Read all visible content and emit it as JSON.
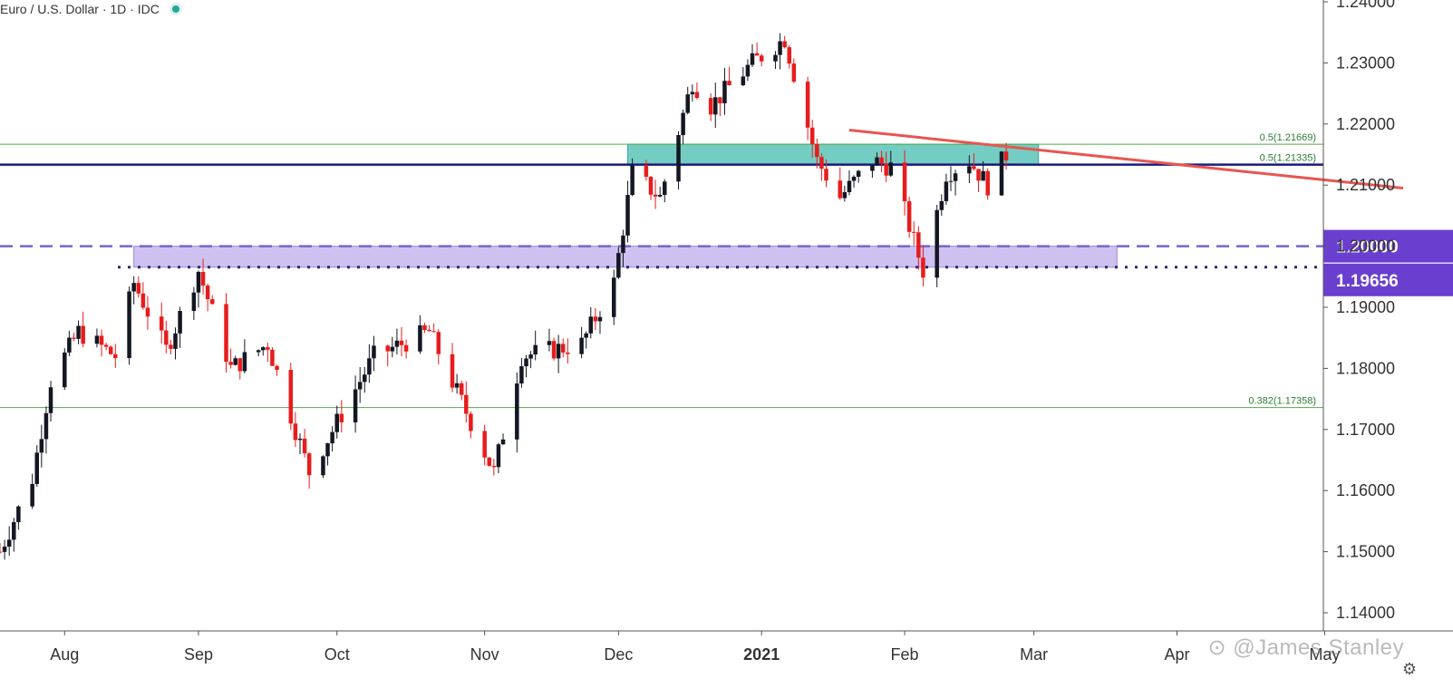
{
  "header": {
    "title": "Euro / U.S. Dollar · 1D · IDC"
  },
  "watermark": "⊙ @James Stanley",
  "icons": {
    "settings": "gear-icon"
  },
  "colors": {
    "up": "#131722",
    "down": "#e81c1c",
    "fib_line": "#55a84a",
    "fib_text": "#2e7d32",
    "level_line": "#1a1a80",
    "zone_teal": "#5cc4b8",
    "zone_purple": "#b9a6e8",
    "dash_purple": "#7b63c9",
    "trendline": "#e85650",
    "axis_badge": "#6a3fcf"
  },
  "chart_data": {
    "type": "candlestick",
    "symbol": "Euro / U.S. Dollar",
    "timeframe": "1D",
    "source": "IDC",
    "ylim": [
      1.135,
      1.24
    ],
    "y_ticks": [
      "1.24000",
      "1.23000",
      "1.22000",
      "1.21000",
      "1.20000",
      "1.19000",
      "1.18000",
      "1.17000",
      "1.16000",
      "1.15000",
      "1.14000"
    ],
    "x_ticks": [
      {
        "label": "Aug",
        "date": "2020-08-03"
      },
      {
        "label": "Sep",
        "date": "2020-09-01"
      },
      {
        "label": "Oct",
        "date": "2020-10-01"
      },
      {
        "label": "Nov",
        "date": "2020-11-02"
      },
      {
        "label": "Dec",
        "date": "2020-12-01"
      },
      {
        "label": "2021",
        "date": "2021-01-01"
      },
      {
        "label": "Feb",
        "date": "2021-02-01"
      },
      {
        "label": "Mar",
        "date": "2021-03-01"
      },
      {
        "label": "Apr",
        "date": "2021-04-01"
      },
      {
        "label": "May",
        "date": "2021-05-03"
      }
    ],
    "candles_anchor": [
      [
        "2020-07-20",
        1.15
      ],
      [
        "2020-07-27",
        1.162
      ],
      [
        "2020-07-31",
        1.178
      ],
      [
        "2020-08-06",
        1.186
      ],
      [
        "2020-08-14",
        1.182
      ],
      [
        "2020-08-18",
        1.194
      ],
      [
        "2020-08-25",
        1.183
      ],
      [
        "2020-09-01",
        1.196
      ],
      [
        "2020-09-08",
        1.18
      ],
      [
        "2020-09-16",
        1.184
      ],
      [
        "2020-09-25",
        1.163
      ],
      [
        "2020-10-09",
        1.182
      ],
      [
        "2020-10-21",
        1.186
      ],
      [
        "2020-11-04",
        1.163
      ],
      [
        "2020-11-10",
        1.182
      ],
      [
        "2020-11-23",
        1.184
      ],
      [
        "2020-11-30",
        1.194
      ],
      [
        "2020-12-04",
        1.212
      ],
      [
        "2020-12-10",
        1.208
      ],
      [
        "2020-12-17",
        1.227
      ],
      [
        "2020-12-21",
        1.223
      ],
      [
        "2020-12-30",
        1.23
      ],
      [
        "2021-01-06",
        1.234
      ],
      [
        "2021-01-13",
        1.214
      ],
      [
        "2021-01-18",
        1.208
      ],
      [
        "2021-01-25",
        1.214
      ],
      [
        "2021-01-29",
        1.213
      ],
      [
        "2021-02-05",
        1.196
      ],
      [
        "2021-02-10",
        1.212
      ],
      [
        "2021-02-15",
        1.214
      ],
      [
        "2021-02-19",
        1.21
      ],
      [
        "2021-02-23",
        1.215
      ]
    ],
    "annotations": [
      {
        "type": "hline",
        "value": 1.21669,
        "label": "0.5(1.21669)",
        "style": "fib"
      },
      {
        "type": "hline",
        "value": 1.21335,
        "label": "0.5(1.21335)",
        "style": "solid-navy"
      },
      {
        "type": "hline",
        "value": 1.17358,
        "label": "0.382(1.17358)",
        "style": "fib"
      },
      {
        "type": "hline",
        "value": 1.2,
        "label": "1.20000",
        "style": "dashed-purple",
        "badge": true
      },
      {
        "type": "hline",
        "value": 1.19656,
        "label": "1.19656",
        "style": "dotted-navy",
        "badge": true
      },
      {
        "type": "zone",
        "from": "2020-12-03",
        "to": "2021-03-02",
        "low": 1.21335,
        "high": 1.21669,
        "color": "teal"
      },
      {
        "type": "zone",
        "from": "2020-08-18",
        "to": "2021-03-19",
        "low": 1.19656,
        "high": 1.2,
        "color": "purple"
      },
      {
        "type": "trendline",
        "from": [
          "2021-01-20",
          1.219
        ],
        "to": [
          "2021-05-20",
          1.2095
        ]
      }
    ]
  }
}
